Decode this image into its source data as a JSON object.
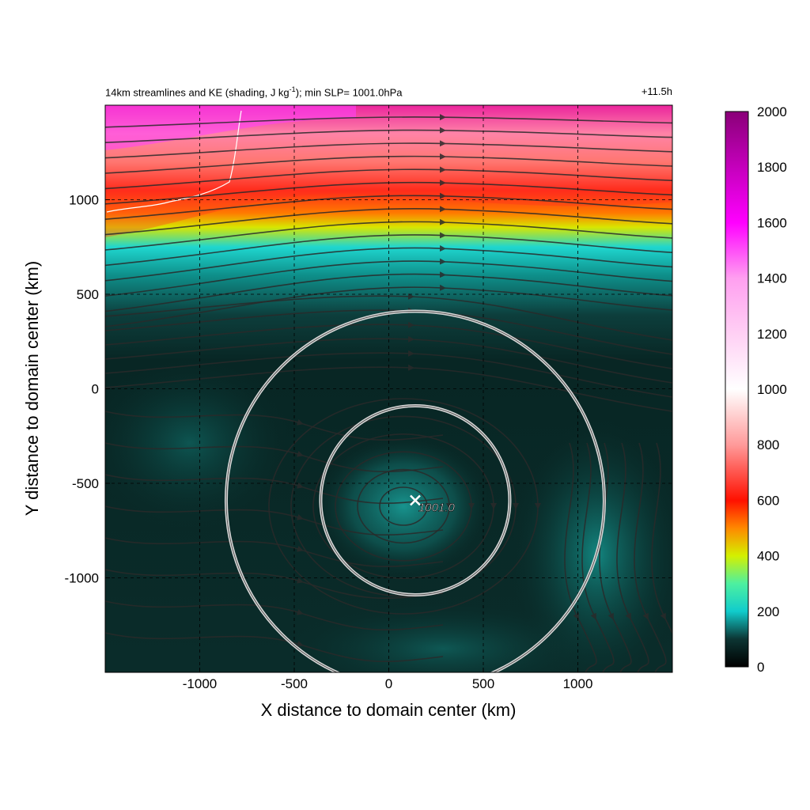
{
  "chart_data": {
    "type": "heatmap",
    "title": {
      "left_prefix": "14km streamlines and KE (shading, J kg",
      "left_exp": "-1",
      "left_suffix": "); min SLP= 1001.0hPa",
      "right": "+11.5h"
    },
    "xlabel": "X distance to domain center (km)",
    "ylabel": "Y distance to domain center (km)",
    "xlim": [
      -1500,
      1500
    ],
    "ylim": [
      -1500,
      1500
    ],
    "xticks": [
      -1000,
      -500,
      0,
      500,
      1000
    ],
    "yticks": [
      -1000,
      -500,
      0,
      500,
      1000
    ],
    "grid": "dashed",
    "colorbar": {
      "min": 0,
      "max": 2000,
      "ticks": [
        0,
        200,
        400,
        600,
        800,
        1000,
        1200,
        1400,
        1600,
        1800,
        2000
      ],
      "colors": [
        "#000000",
        "#0e3a38",
        "#11cccc",
        "#d4f000",
        "#ff1000",
        "#ff9a9a",
        "#ffffff",
        "#ff9ff0",
        "#ff00ff",
        "#8a0078"
      ]
    },
    "circles": [
      {
        "center_x": 140,
        "center_y": -590,
        "radius_km": 500
      },
      {
        "center_x": 140,
        "center_y": -590,
        "radius_km": 1000
      }
    ],
    "center_marker": {
      "x": 140,
      "y": -590,
      "label": "1001.0"
    },
    "ke_bands": [
      {
        "y_from": 1500,
        "y_to": 1300,
        "value": 1250
      },
      {
        "y_from": 1300,
        "y_to": 1100,
        "value": 750
      },
      {
        "y_from": 1100,
        "y_to": 1000,
        "value": 520
      },
      {
        "y_from": 1000,
        "y_to": 870,
        "value": 380
      },
      {
        "y_from": 870,
        "y_to": 700,
        "value": 220
      },
      {
        "y_from": 700,
        "y_to": 500,
        "value": 110
      },
      {
        "y_from": 500,
        "y_to": -1500,
        "value": 50
      }
    ],
    "streamlines": "wind flow lines (westerly jet aloft, cyclonic circulation around center)"
  }
}
